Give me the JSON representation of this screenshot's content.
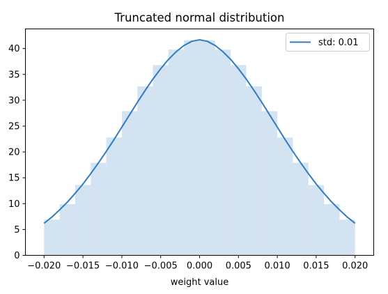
{
  "chart_data": {
    "type": "bar",
    "title": "Truncated normal distribution",
    "xlabel": "weight value",
    "ylabel": "",
    "xlim": [
      -0.0224,
      0.0224
    ],
    "ylim": [
      0,
      43.8
    ],
    "xticks": [
      -0.02,
      -0.015,
      -0.01,
      -0.005,
      0.0,
      0.005,
      0.01,
      0.015,
      0.02
    ],
    "xtick_labels": [
      "−0.020",
      "−0.015",
      "−0.010",
      "−0.005",
      "0.000",
      "0.005",
      "0.010",
      "0.015",
      "0.020"
    ],
    "yticks": [
      0,
      5,
      10,
      15,
      20,
      25,
      30,
      35,
      40
    ],
    "ytick_labels": [
      "0",
      "5",
      "10",
      "15",
      "20",
      "25",
      "30",
      "35",
      "40"
    ],
    "grid": false,
    "legend": {
      "position": "top-right",
      "entries": [
        {
          "label": "std: 0.01",
          "color": "#2f7bbf"
        }
      ]
    },
    "histogram": {
      "color": "#d3e3f1",
      "bin_edges": [
        -0.02,
        -0.018,
        -0.016,
        -0.014,
        -0.012,
        -0.01,
        -0.008,
        -0.006,
        -0.004,
        -0.002,
        0.0,
        0.002,
        0.004,
        0.006,
        0.008,
        0.01,
        0.012,
        0.014,
        0.016,
        0.018,
        0.02
      ],
      "heights": [
        6.9,
        9.9,
        13.6,
        17.9,
        22.8,
        27.9,
        32.7,
        36.8,
        39.8,
        41.6,
        41.6,
        39.8,
        36.8,
        32.7,
        27.9,
        22.8,
        17.9,
        13.6,
        9.9,
        6.9
      ]
    },
    "series": [
      {
        "name": "std: 0.01",
        "type": "line",
        "color": "#2f7bbf",
        "x": [
          -0.02,
          -0.019,
          -0.018,
          -0.017,
          -0.016,
          -0.015,
          -0.014,
          -0.013,
          -0.012,
          -0.011,
          -0.01,
          -0.009,
          -0.008,
          -0.007,
          -0.006,
          -0.005,
          -0.004,
          -0.003,
          -0.002,
          -0.001,
          0.0,
          0.001,
          0.002,
          0.003,
          0.004,
          0.005,
          0.006,
          0.007,
          0.008,
          0.009,
          0.01,
          0.011,
          0.012,
          0.013,
          0.014,
          0.015,
          0.016,
          0.017,
          0.018,
          0.019,
          0.02
        ],
        "y": [
          6.2,
          7.4,
          8.8,
          10.3,
          12.0,
          13.8,
          15.8,
          17.9,
          20.1,
          22.4,
          24.8,
          27.2,
          29.6,
          31.9,
          34.1,
          36.1,
          37.9,
          39.4,
          40.6,
          41.4,
          41.7,
          41.4,
          40.6,
          39.4,
          37.9,
          36.1,
          34.1,
          31.9,
          29.6,
          27.2,
          24.8,
          22.4,
          20.1,
          17.9,
          15.8,
          13.8,
          12.0,
          10.3,
          8.8,
          7.4,
          6.2
        ]
      }
    ]
  }
}
